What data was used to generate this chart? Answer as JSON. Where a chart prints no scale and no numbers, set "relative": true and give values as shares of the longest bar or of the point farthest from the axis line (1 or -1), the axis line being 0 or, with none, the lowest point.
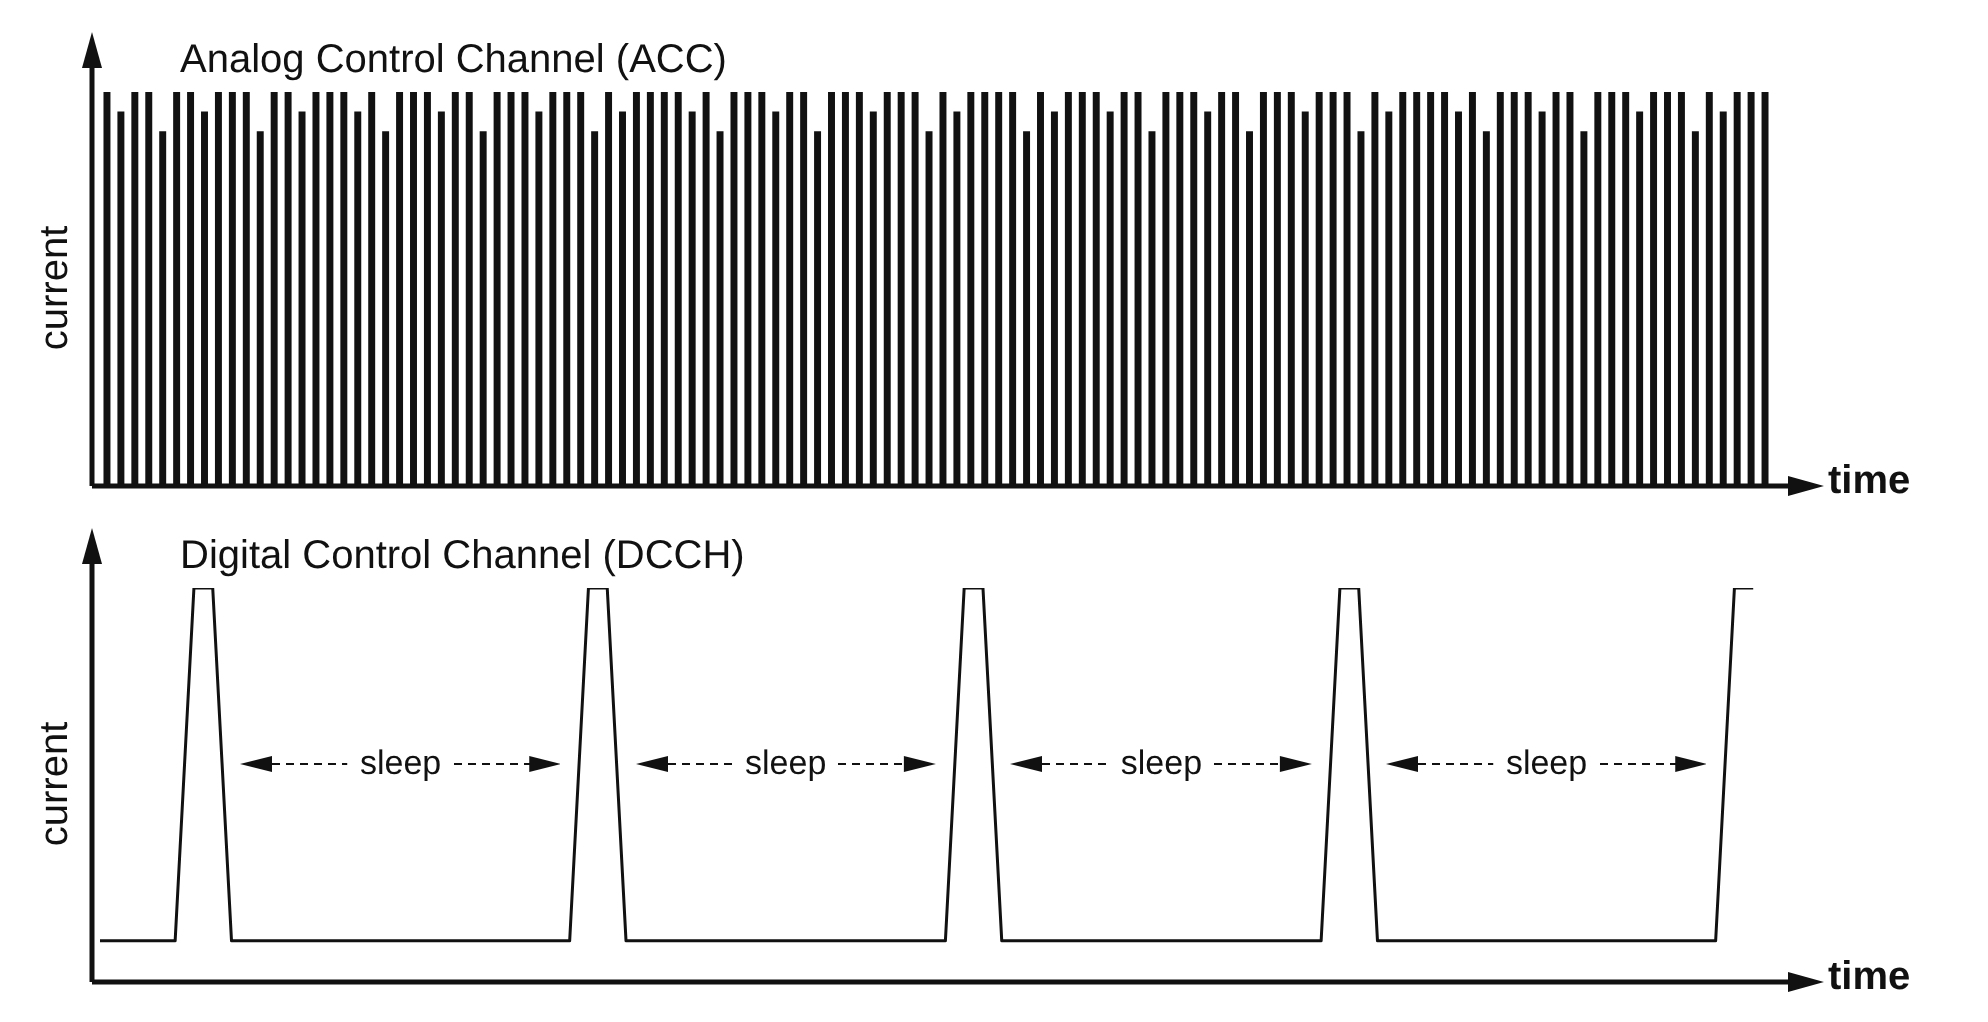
{
  "chart_data": [
    {
      "type": "bar",
      "title": "Analog Control Channel (ACC)",
      "xlabel": "time",
      "ylabel": "current",
      "relative": true,
      "color": "#111111",
      "categories": [
        null,
        null,
        null,
        null,
        null,
        null,
        null,
        null,
        null,
        null,
        null,
        null,
        null,
        null,
        null,
        null,
        null,
        null,
        null,
        null,
        null,
        null,
        null,
        null,
        null,
        null,
        null,
        null,
        null,
        null,
        null,
        null,
        null,
        null,
        null,
        null,
        null,
        null,
        null,
        null,
        null,
        null,
        null,
        null,
        null,
        null,
        null,
        null,
        null,
        null,
        null,
        null,
        null,
        null,
        null,
        null,
        null,
        null,
        null,
        null,
        null,
        null,
        null,
        null,
        null,
        null,
        null,
        null,
        null,
        null,
        null,
        null,
        null,
        null,
        null,
        null,
        null,
        null,
        null,
        null,
        null,
        null,
        null,
        null,
        null,
        null,
        null,
        null,
        null,
        null,
        null,
        null,
        null,
        null,
        null,
        null,
        null,
        null,
        null,
        null,
        null,
        null,
        null,
        null,
        null,
        null,
        null,
        null,
        null,
        null,
        null,
        null,
        null,
        null,
        null,
        null,
        null,
        null,
        null,
        null
      ],
      "values": [
        1,
        0.95,
        1,
        1,
        0.9,
        1,
        1,
        0.95,
        1,
        1,
        1,
        0.9,
        1,
        1,
        0.95,
        1,
        1,
        1,
        0.95,
        1,
        0.9,
        1,
        1,
        1,
        0.95,
        1,
        1,
        0.9,
        1,
        1,
        1,
        0.95,
        1,
        1,
        1,
        0.9,
        1,
        0.95,
        1,
        1,
        1,
        1,
        0.95,
        1,
        0.9,
        1,
        1,
        1,
        0.95,
        1,
        1,
        0.9,
        1,
        1,
        1,
        0.95,
        1,
        1,
        1,
        0.9,
        1,
        0.95,
        1,
        1,
        1,
        1,
        0.9,
        1,
        0.95,
        1,
        1,
        1,
        0.95,
        1,
        1,
        0.9,
        1,
        1,
        1,
        0.95,
        1,
        1,
        0.9,
        1,
        1,
        1,
        0.95,
        1,
        1,
        1,
        0.9,
        1,
        0.95,
        1,
        1,
        1,
        1,
        0.95,
        1,
        0.9,
        1,
        1,
        1,
        0.95,
        1,
        1,
        0.9,
        1,
        1,
        1,
        0.95,
        1,
        1,
        1,
        0.9,
        1,
        0.95,
        1,
        1,
        1
      ]
    },
    {
      "type": "line",
      "title": "Digital Control Channel (DCCH)",
      "xlabel": "time",
      "ylabel": "current",
      "relative": true,
      "color": "#111111",
      "categories": [
        null,
        null,
        null,
        null,
        null,
        null,
        null,
        null,
        null,
        null,
        null,
        null,
        null,
        null,
        null,
        null,
        null,
        null,
        null,
        null,
        null,
        null,
        null,
        null,
        null,
        null,
        null,
        null,
        null,
        null,
        null,
        null,
        null,
        null,
        null,
        null,
        null,
        null,
        null,
        null,
        null,
        null,
        null,
        null,
        null,
        null,
        null,
        null,
        null,
        null,
        null,
        null,
        null,
        null,
        null,
        null,
        null,
        null,
        null,
        null,
        null,
        null,
        null,
        null,
        null,
        null,
        null,
        null,
        null,
        null,
        null,
        null,
        null,
        null,
        null,
        null,
        null,
        null,
        null,
        null,
        null,
        null,
        null,
        null,
        null,
        null,
        null,
        null,
        null,
        null
      ],
      "values": [
        0.1,
        0.1,
        0.1,
        0.1,
        0.1,
        1,
        1,
        0.1,
        0.1,
        0.1,
        0.1,
        0.1,
        0.1,
        0.1,
        0.1,
        0.1,
        0.1,
        0.1,
        0.1,
        0.1,
        0.1,
        0.1,
        0.1,
        0.1,
        0.1,
        0.1,
        1,
        1,
        0.1,
        0.1,
        0.1,
        0.1,
        0.1,
        0.1,
        0.1,
        0.1,
        0.1,
        0.1,
        0.1,
        0.1,
        0.1,
        0.1,
        0.1,
        0.1,
        0.1,
        0.1,
        1,
        1,
        0.1,
        0.1,
        0.1,
        0.1,
        0.1,
        0.1,
        0.1,
        0.1,
        0.1,
        0.1,
        0.1,
        0.1,
        0.1,
        0.1,
        0.1,
        0.1,
        0.1,
        0.1,
        1,
        1,
        0.1,
        0.1,
        0.1,
        0.1,
        0.1,
        0.1,
        0.1,
        0.1,
        0.1,
        0.1,
        0.1,
        0.1,
        0.1,
        0.1,
        0.1,
        0.1,
        0.1,
        0.1,
        0.1,
        1,
        1,
        null
      ],
      "annotations": [
        "sleep",
        "sleep",
        "sleep",
        "sleep"
      ]
    }
  ]
}
